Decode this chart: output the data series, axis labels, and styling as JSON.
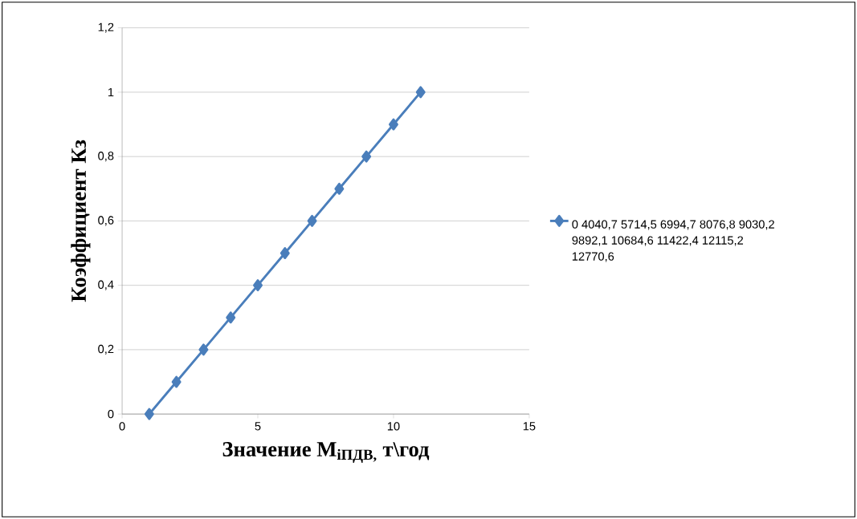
{
  "chart_data": {
    "type": "line",
    "xlabel": "Значение M$_{іПДВ,}$ т\\год",
    "ylabel": "Коэффициент Кз",
    "x": [
      1,
      2,
      3,
      4,
      5,
      6,
      7,
      8,
      9,
      10,
      11
    ],
    "series": [
      {
        "name": "0 4040,7 5714,5 6994,7 8076,8 9030,2 9892,1 10684,6 11422,4 12115,2 12770,6",
        "color": "#4a7ebb",
        "values": [
          0,
          0.1,
          0.2,
          0.3,
          0.4,
          0.5,
          0.6,
          0.7,
          0.8,
          0.9,
          1.0
        ]
      }
    ],
    "xlim": [
      0,
      15
    ],
    "xticks": [
      0,
      5,
      10,
      15
    ],
    "ylim": [
      0,
      1.2
    ],
    "yticks": [
      0,
      {
        "value": 0.2,
        "label": "0,2"
      },
      {
        "value": 0.4,
        "label": "0,4"
      },
      {
        "value": 0.6,
        "label": "0,6"
      },
      {
        "value": 0.8,
        "label": "0,8"
      },
      1,
      {
        "value": 1.2,
        "label": "1,2"
      }
    ],
    "grid": "y",
    "legend": "right",
    "marker": "diamond",
    "line_style": "solid"
  }
}
